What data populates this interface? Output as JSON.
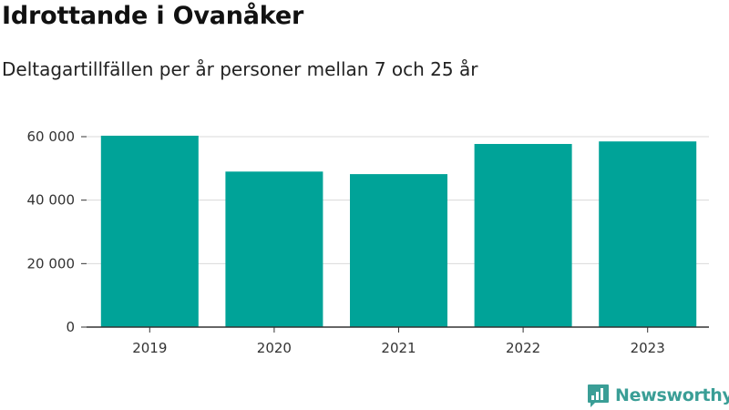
{
  "header": {
    "title": "Idrottande i Ovanåker",
    "subtitle": "Deltagartillfällen per år personer mellan 7 och 25 år"
  },
  "brand": {
    "name": "Newsworthy",
    "icon": "newsworthy-logo-icon",
    "color": "#3a9e96"
  },
  "chart_data": {
    "type": "bar",
    "categories": [
      "2019",
      "2020",
      "2021",
      "2022",
      "2023"
    ],
    "values": [
      60300,
      49000,
      48200,
      57700,
      58500
    ],
    "ylim": [
      0,
      60000
    ],
    "yticks": [
      0,
      20000,
      40000,
      60000
    ],
    "ytick_labels": [
      "0",
      "20 000",
      "40 000",
      "60 000"
    ],
    "bar_color": "#00a398",
    "grid": true,
    "legend": "none"
  }
}
